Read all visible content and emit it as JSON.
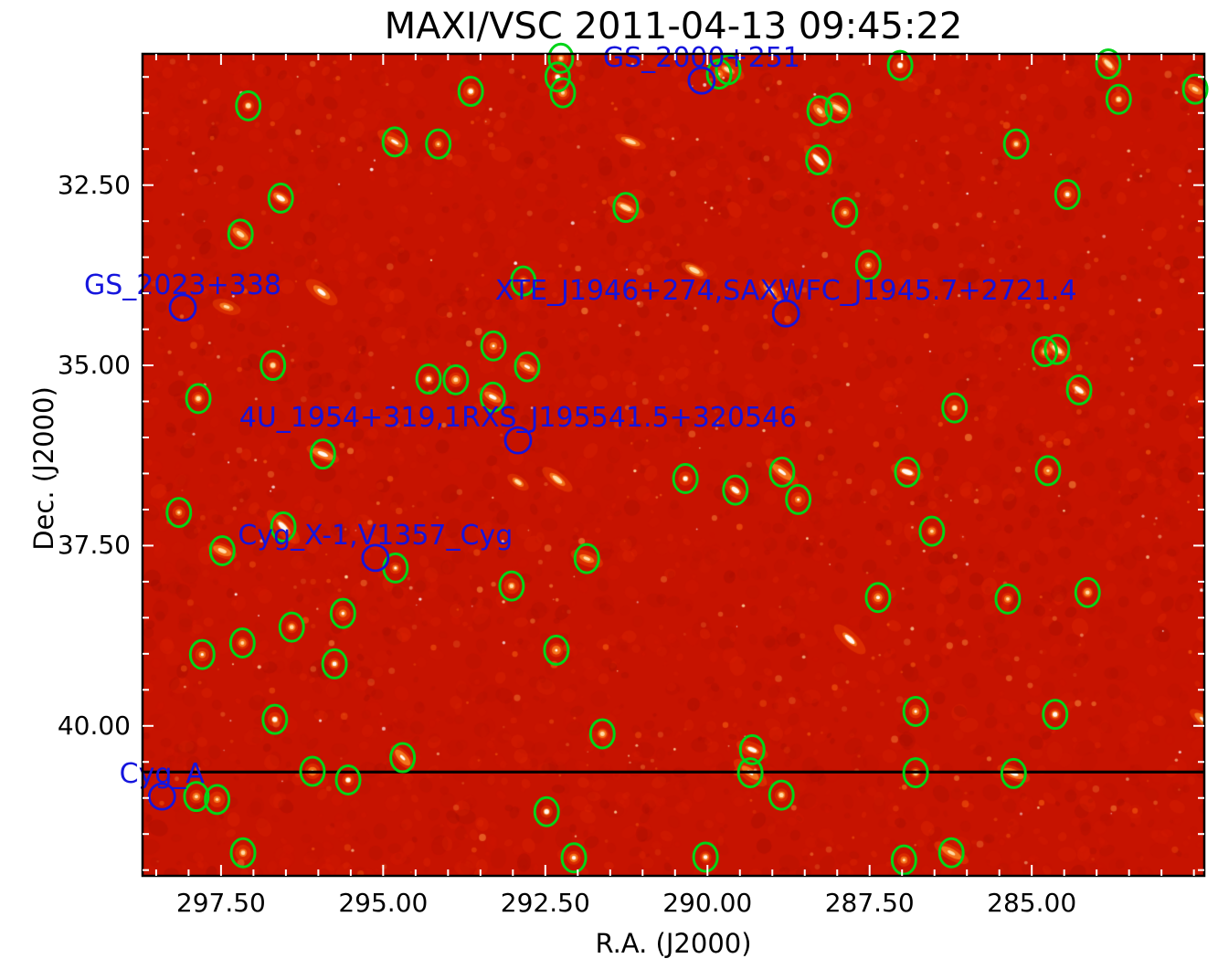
{
  "chart_data": {
    "type": "scatter",
    "title": "MAXI/VSC 2011-04-13 09:45:22",
    "xlabel": "R.A. (J2000)",
    "ylabel": "Dec. (J2000)",
    "grid": false,
    "legend": null,
    "x_axis": {
      "ticks": [
        297.5,
        295.0,
        292.5,
        290.0,
        287.5,
        285.0
      ],
      "tick_labels": [
        "297.50",
        "295.00",
        "292.50",
        "290.00",
        "287.50",
        "285.00"
      ],
      "range": [
        298.71,
        282.34
      ],
      "minor_step": 0.5,
      "direction": "reversed"
    },
    "y_axis": {
      "ticks": [
        32.5,
        35.0,
        37.5,
        40.0
      ],
      "tick_labels": [
        "32.50",
        "35.00",
        "37.50",
        "40.00"
      ],
      "range": [
        30.68,
        42.08
      ],
      "minor_step": 0.5,
      "direction": "increasing-downward"
    },
    "labeled_sources": [
      {
        "name": "GS_2000+251",
        "ra": 290.09,
        "dec": 31.05
      },
      {
        "name": "GS_2023+338",
        "ra": 298.09,
        "dec": 34.2
      },
      {
        "name": "XTE_J1946+274,SAXWFC_J1945.7+2721.4",
        "ra": 288.79,
        "dec": 34.28
      },
      {
        "name": "4U_1954+319,1RXS_J195541.5+320546",
        "ra": 292.92,
        "dec": 36.04
      },
      {
        "name": "Cyg_X-1,V1357_Cyg",
        "ra": 295.12,
        "dec": 37.67
      },
      {
        "name": "Cyg_A",
        "ra": 298.41,
        "dec": 40.98
      }
    ],
    "horizontal_line_dec": 40.64,
    "detections": [
      [
        297.08,
        31.4
      ],
      [
        293.65,
        31.2
      ],
      [
        292.26,
        30.74
      ],
      [
        292.31,
        31.0
      ],
      [
        292.23,
        31.22
      ],
      [
        289.82,
        30.96
      ],
      [
        289.68,
        30.9
      ],
      [
        288.27,
        31.47
      ],
      [
        287.99,
        31.43
      ],
      [
        287.03,
        30.84
      ],
      [
        283.82,
        30.82
      ],
      [
        283.66,
        31.31
      ],
      [
        282.48,
        31.17
      ],
      [
        288.29,
        32.15
      ],
      [
        285.24,
        31.93
      ],
      [
        294.82,
        31.9
      ],
      [
        294.15,
        31.93
      ],
      [
        296.58,
        32.68
      ],
      [
        297.2,
        33.18
      ],
      [
        291.26,
        32.81
      ],
      [
        292.84,
        33.83
      ],
      [
        287.88,
        32.88
      ],
      [
        287.52,
        33.61
      ],
      [
        284.45,
        32.63
      ],
      [
        296.7,
        35.0
      ],
      [
        297.85,
        35.46
      ],
      [
        294.3,
        35.19
      ],
      [
        293.88,
        35.2
      ],
      [
        293.31,
        35.44
      ],
      [
        293.3,
        34.73
      ],
      [
        292.78,
        35.02
      ],
      [
        295.93,
        36.23
      ],
      [
        284.8,
        34.81
      ],
      [
        284.61,
        34.78
      ],
      [
        284.27,
        35.34
      ],
      [
        286.19,
        35.59
      ],
      [
        286.92,
        36.48
      ],
      [
        284.75,
        36.46
      ],
      [
        290.34,
        36.57
      ],
      [
        289.57,
        36.73
      ],
      [
        288.85,
        36.48
      ],
      [
        288.6,
        36.86
      ],
      [
        286.54,
        37.3
      ],
      [
        287.37,
        38.22
      ],
      [
        285.37,
        38.24
      ],
      [
        284.14,
        38.15
      ],
      [
        286.79,
        39.8
      ],
      [
        284.64,
        39.84
      ],
      [
        289.31,
        40.33
      ],
      [
        289.34,
        40.65
      ],
      [
        286.79,
        40.65
      ],
      [
        285.28,
        40.66
      ],
      [
        288.86,
        40.96
      ],
      [
        290.03,
        41.82
      ],
      [
        286.97,
        41.86
      ],
      [
        286.24,
        41.76
      ],
      [
        298.15,
        37.04
      ],
      [
        297.48,
        37.57
      ],
      [
        296.54,
        37.24
      ],
      [
        294.81,
        37.81
      ],
      [
        293.02,
        38.06
      ],
      [
        291.86,
        37.68
      ],
      [
        295.62,
        38.44
      ],
      [
        296.41,
        38.63
      ],
      [
        297.17,
        38.85
      ],
      [
        297.79,
        39.01
      ],
      [
        295.75,
        39.14
      ],
      [
        292.33,
        38.95
      ],
      [
        296.67,
        39.91
      ],
      [
        291.62,
        40.11
      ],
      [
        294.7,
        40.44
      ],
      [
        296.09,
        40.63
      ],
      [
        295.54,
        40.75
      ],
      [
        297.88,
        40.98
      ],
      [
        297.56,
        41.02
      ],
      [
        292.48,
        41.19
      ],
      [
        297.16,
        41.76
      ],
      [
        292.06,
        41.83
      ]
    ],
    "colors": {
      "image_background": "#c61300",
      "detection_circle": "#00d418",
      "labeled_circle": "#1515dd",
      "annotation_text": "#1515dd",
      "horizontal_line": "#000000",
      "axes_text": "#000000",
      "edge_ticks": "#ffffff"
    }
  }
}
